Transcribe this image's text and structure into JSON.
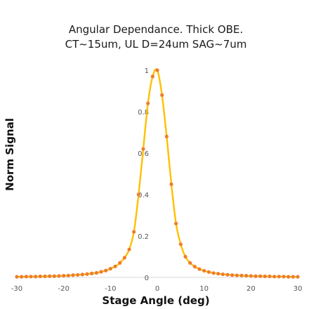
{
  "chart_data": {
    "type": "scatter",
    "title": "Angular Dependance. Thick OBE.",
    "subtitle": "CT~15um, UL D=24um SAG~7um",
    "xlabel": "Stage Angle (deg)",
    "ylabel": "Norm Signal",
    "xlim": [
      -30,
      30
    ],
    "ylim": [
      0,
      1
    ],
    "xticks": [
      "-30",
      "-20",
      "-10",
      "0",
      "10",
      "20",
      "30"
    ],
    "yticks": [
      "0",
      "0.2",
      "0.4",
      "0.6",
      "0.8",
      "1"
    ],
    "grid": false,
    "legend": "none",
    "fit_color": "#FFC000",
    "point_color": "#ED7D31",
    "points": [
      {
        "x": -30,
        "y": 0.003
      },
      {
        "x": -29,
        "y": 0.003
      },
      {
        "x": -28,
        "y": 0.004
      },
      {
        "x": -27,
        "y": 0.004
      },
      {
        "x": -26,
        "y": 0.004
      },
      {
        "x": -25,
        "y": 0.005
      },
      {
        "x": -24,
        "y": 0.005
      },
      {
        "x": -23,
        "y": 0.006
      },
      {
        "x": -22,
        "y": 0.006
      },
      {
        "x": -21,
        "y": 0.007
      },
      {
        "x": -20,
        "y": 0.008
      },
      {
        "x": -19,
        "y": 0.009
      },
      {
        "x": -18,
        "y": 0.011
      },
      {
        "x": -17,
        "y": 0.012
      },
      {
        "x": -16,
        "y": 0.014
      },
      {
        "x": -15,
        "y": 0.016
      },
      {
        "x": -14,
        "y": 0.019
      },
      {
        "x": -13,
        "y": 0.022
      },
      {
        "x": -12,
        "y": 0.027
      },
      {
        "x": -11,
        "y": 0.033
      },
      {
        "x": -10,
        "y": 0.042
      },
      {
        "x": -9,
        "y": 0.053
      },
      {
        "x": -8,
        "y": 0.07
      },
      {
        "x": -7,
        "y": 0.095
      },
      {
        "x": -6,
        "y": 0.135
      },
      {
        "x": -5,
        "y": 0.22
      },
      {
        "x": -4,
        "y": 0.4
      },
      {
        "x": -3,
        "y": 0.62
      },
      {
        "x": -2,
        "y": 0.84
      },
      {
        "x": -1,
        "y": 0.97
      },
      {
        "x": 0,
        "y": 1.0
      },
      {
        "x": 1,
        "y": 0.88
      },
      {
        "x": 2,
        "y": 0.68
      },
      {
        "x": 3,
        "y": 0.45
      },
      {
        "x": 4,
        "y": 0.26
      },
      {
        "x": 5,
        "y": 0.16
      },
      {
        "x": 6,
        "y": 0.1
      },
      {
        "x": 7,
        "y": 0.07
      },
      {
        "x": 8,
        "y": 0.052
      },
      {
        "x": 9,
        "y": 0.04
      },
      {
        "x": 10,
        "y": 0.032
      },
      {
        "x": 11,
        "y": 0.026
      },
      {
        "x": 12,
        "y": 0.021
      },
      {
        "x": 13,
        "y": 0.018
      },
      {
        "x": 14,
        "y": 0.015
      },
      {
        "x": 15,
        "y": 0.013
      },
      {
        "x": 16,
        "y": 0.011
      },
      {
        "x": 17,
        "y": 0.01
      },
      {
        "x": 18,
        "y": 0.009
      },
      {
        "x": 19,
        "y": 0.008
      },
      {
        "x": 20,
        "y": 0.007
      },
      {
        "x": 21,
        "y": 0.006
      },
      {
        "x": 22,
        "y": 0.006
      },
      {
        "x": 23,
        "y": 0.005
      },
      {
        "x": 24,
        "y": 0.005
      },
      {
        "x": 25,
        "y": 0.004
      },
      {
        "x": 26,
        "y": 0.004
      },
      {
        "x": 27,
        "y": 0.004
      },
      {
        "x": 28,
        "y": 0.003
      },
      {
        "x": 29,
        "y": 0.003
      },
      {
        "x": 30,
        "y": 0.003
      }
    ]
  }
}
